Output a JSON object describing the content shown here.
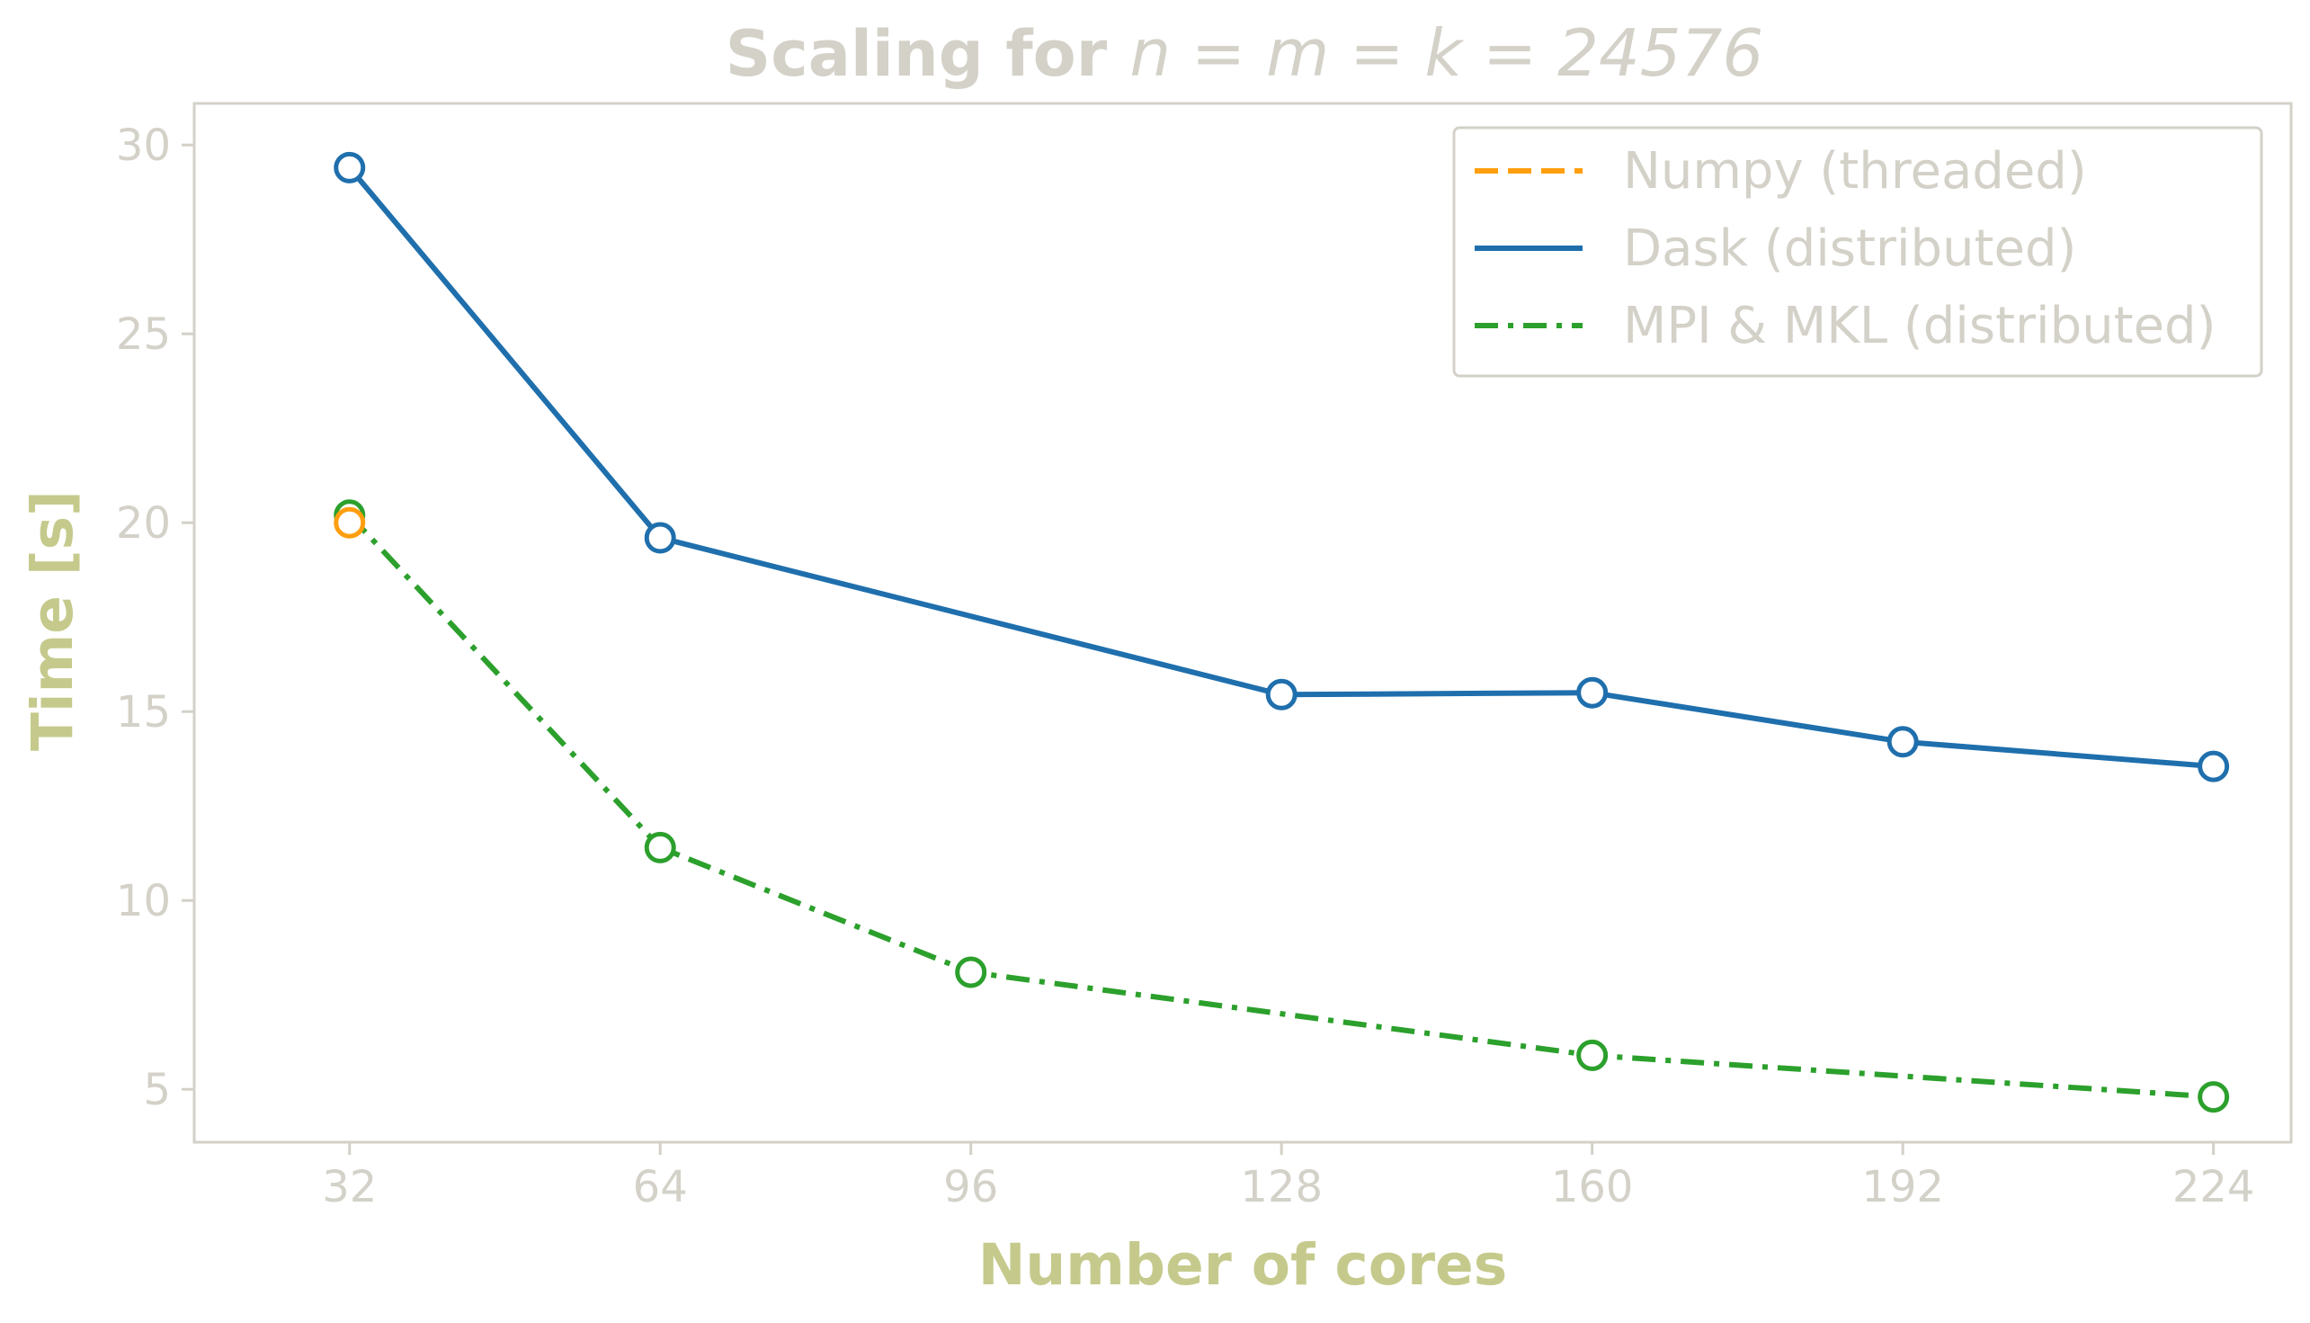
{
  "chart_data": {
    "type": "line",
    "title": "Scaling for",
    "title_math": "n = m = k = 24576",
    "xlabel": "Number of cores",
    "ylabel": "Time [s]",
    "xlim": [
      16,
      232
    ],
    "ylim": [
      3.6,
      31.1
    ],
    "xticks": [
      32,
      64,
      96,
      128,
      160,
      192,
      224
    ],
    "yticks": [
      5,
      10,
      15,
      20,
      25,
      30
    ],
    "grid": false,
    "legend_position": "top-right",
    "series": [
      {
        "name": "Numpy (threaded)",
        "color": "#ff9f0f",
        "line_style": "dashed",
        "marker": "open-circle",
        "x": [
          32
        ],
        "y": [
          20.0
        ]
      },
      {
        "name": "Dask (distributed)",
        "color": "#1f6fad",
        "line_style": "solid",
        "marker": "open-circle",
        "x": [
          32,
          64,
          128,
          160,
          192,
          224
        ],
        "y": [
          29.4,
          19.6,
          15.45,
          15.5,
          14.2,
          13.55
        ]
      },
      {
        "name": "MPI & MKL (distributed)",
        "color": "#2ca02c",
        "line_style": "dashdot",
        "marker": "open-circle",
        "x": [
          32,
          64,
          96,
          160,
          224
        ],
        "y": [
          20.2,
          11.4,
          8.1,
          5.9,
          4.8
        ]
      }
    ],
    "colors": {
      "text": "#d3d1c8",
      "axis_title": "#c5ca8c",
      "frame": "#d3d1c8"
    }
  }
}
